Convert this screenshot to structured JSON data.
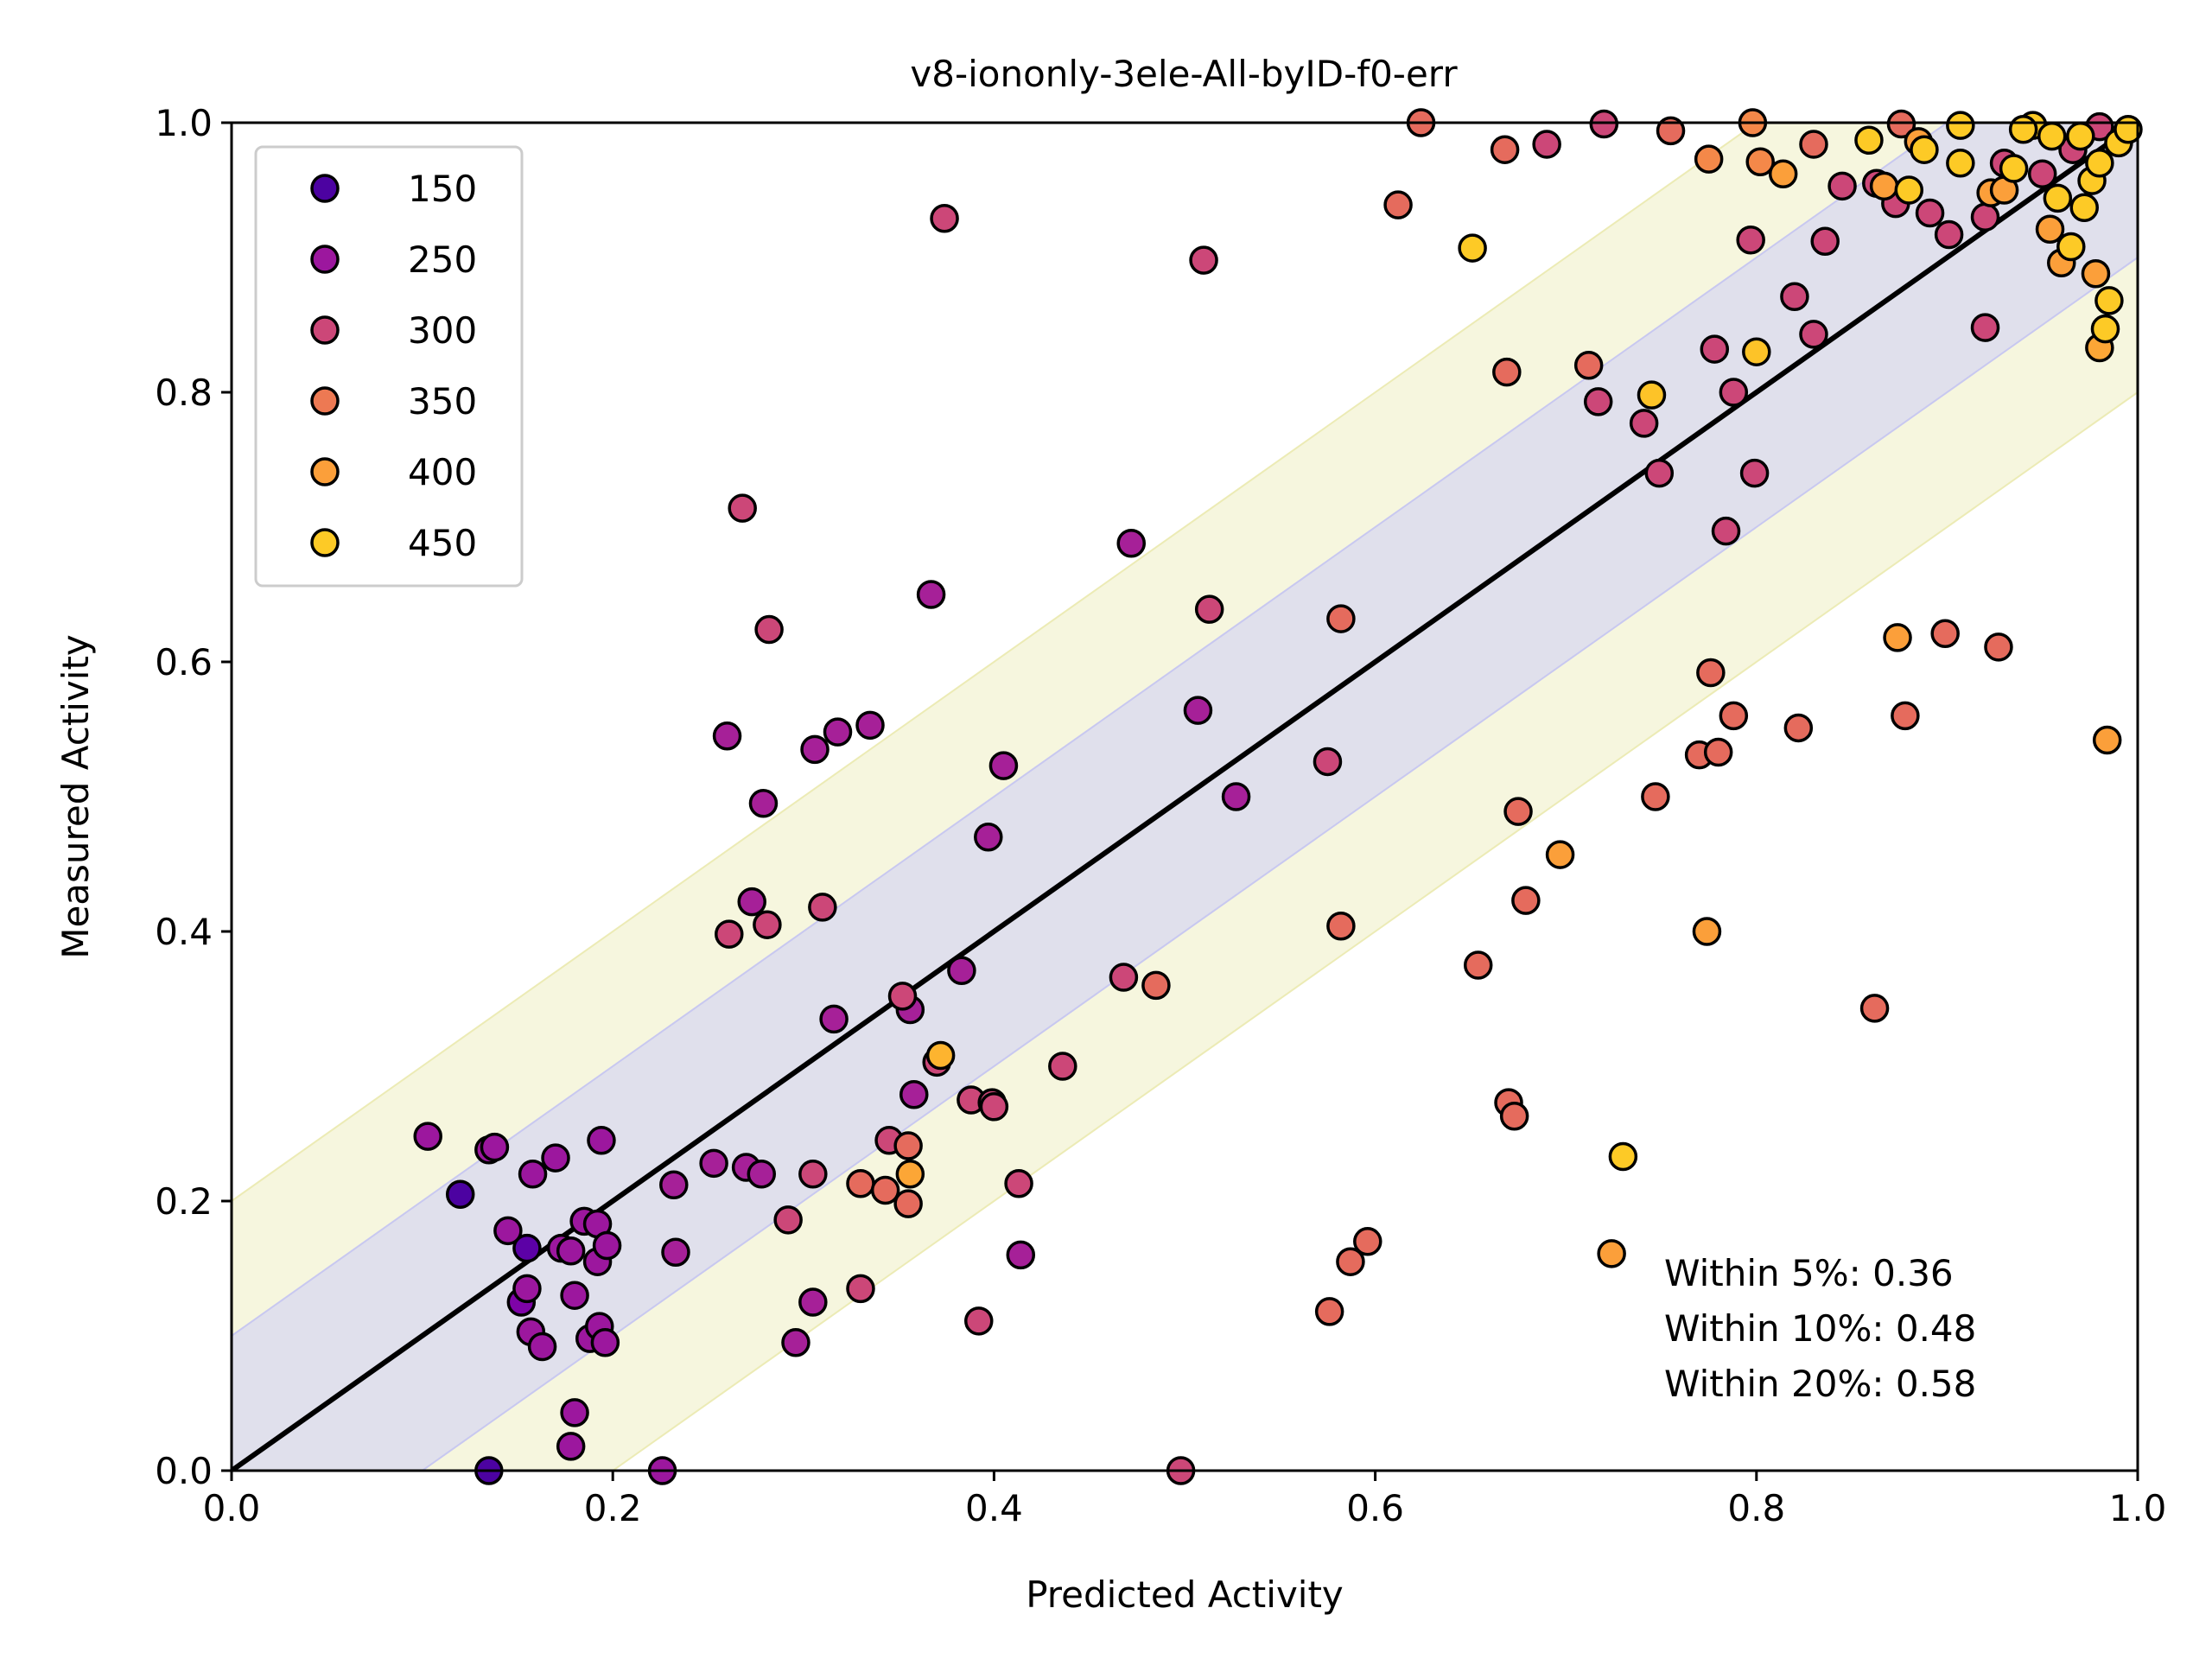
{
  "chart_data": {
    "type": "scatter",
    "title": "v8-iononly-3ele-All-byID-f0-err",
    "xlabel": "Predicted Activity",
    "ylabel": "Measured Activity",
    "xlim": [
      0.0,
      1.0
    ],
    "ylim": [
      0.0,
      1.0
    ],
    "xticks": [
      "0.0",
      "0.2",
      "0.4",
      "0.6",
      "0.8",
      "1.0"
    ],
    "yticks": [
      "0.0",
      "0.2",
      "0.4",
      "0.6",
      "0.8",
      "1.0"
    ],
    "grid": false,
    "legend_position": "upper-left",
    "legend": [
      {
        "label": "150",
        "color": "#4c02a1"
      },
      {
        "label": "250",
        "color": "#9c179e"
      },
      {
        "label": "300",
        "color": "#cc4778"
      },
      {
        "label": "350",
        "color": "#ed7953"
      },
      {
        "label": "400",
        "color": "#fb9f3a"
      },
      {
        "label": "450",
        "color": "#fdca26"
      }
    ],
    "reference_line": {
      "label": "y = x",
      "color": "#000000"
    },
    "bands": [
      {
        "half_width": 0.2,
        "color": "#f0f0c8"
      },
      {
        "half_width": 0.1,
        "color": "#dcdcee"
      }
    ],
    "annotations": [
      "Within 5%: 0.36",
      "Within 10%: 0.48",
      "Within 20%: 0.58"
    ],
    "points": [
      {
        "x": 0.12,
        "y": 0.205,
        "c": "#4c02a1"
      },
      {
        "x": 0.135,
        "y": 0.0,
        "c": "#4c02a1"
      },
      {
        "x": 0.155,
        "y": 0.165,
        "c": "#5c01a6"
      },
      {
        "x": 0.152,
        "y": 0.125,
        "c": "#7e03a8"
      },
      {
        "x": 0.103,
        "y": 0.248,
        "c": "#9c179e"
      },
      {
        "x": 0.135,
        "y": 0.238,
        "c": "#9c179e"
      },
      {
        "x": 0.138,
        "y": 0.24,
        "c": "#9c179e"
      },
      {
        "x": 0.145,
        "y": 0.178,
        "c": "#9c179e"
      },
      {
        "x": 0.155,
        "y": 0.135,
        "c": "#9c179e"
      },
      {
        "x": 0.157,
        "y": 0.103,
        "c": "#9c179e"
      },
      {
        "x": 0.158,
        "y": 0.22,
        "c": "#9c179e"
      },
      {
        "x": 0.163,
        "y": 0.092,
        "c": "#9c179e"
      },
      {
        "x": 0.17,
        "y": 0.232,
        "c": "#9c179e"
      },
      {
        "x": 0.173,
        "y": 0.165,
        "c": "#9c179e"
      },
      {
        "x": 0.178,
        "y": 0.163,
        "c": "#9c179e"
      },
      {
        "x": 0.18,
        "y": 0.13,
        "c": "#9c179e"
      },
      {
        "x": 0.185,
        "y": 0.185,
        "c": "#9c179e"
      },
      {
        "x": 0.188,
        "y": 0.098,
        "c": "#9c179e"
      },
      {
        "x": 0.192,
        "y": 0.183,
        "c": "#9c179e"
      },
      {
        "x": 0.192,
        "y": 0.155,
        "c": "#9c179e"
      },
      {
        "x": 0.193,
        "y": 0.107,
        "c": "#9c179e"
      },
      {
        "x": 0.194,
        "y": 0.245,
        "c": "#9c179e"
      },
      {
        "x": 0.196,
        "y": 0.095,
        "c": "#9c179e"
      },
      {
        "x": 0.197,
        "y": 0.167,
        "c": "#9c179e"
      },
      {
        "x": 0.178,
        "y": 0.018,
        "c": "#9c179e"
      },
      {
        "x": 0.18,
        "y": 0.043,
        "c": "#9c179e"
      },
      {
        "x": 0.226,
        "y": 0.0,
        "c": "#9c179e"
      },
      {
        "x": 0.232,
        "y": 0.212,
        "c": "#a62098"
      },
      {
        "x": 0.233,
        "y": 0.162,
        "c": "#a62098"
      },
      {
        "x": 0.253,
        "y": 0.228,
        "c": "#a62098"
      },
      {
        "x": 0.26,
        "y": 0.545,
        "c": "#a62098"
      },
      {
        "x": 0.27,
        "y": 0.225,
        "c": "#a62098"
      },
      {
        "x": 0.273,
        "y": 0.422,
        "c": "#a62098"
      },
      {
        "x": 0.278,
        "y": 0.22,
        "c": "#a62098"
      },
      {
        "x": 0.279,
        "y": 0.495,
        "c": "#a62098"
      },
      {
        "x": 0.296,
        "y": 0.095,
        "c": "#a62098"
      },
      {
        "x": 0.305,
        "y": 0.125,
        "c": "#a62098"
      },
      {
        "x": 0.306,
        "y": 0.535,
        "c": "#a62098"
      },
      {
        "x": 0.316,
        "y": 0.335,
        "c": "#a62098"
      },
      {
        "x": 0.318,
        "y": 0.548,
        "c": "#a62098"
      },
      {
        "x": 0.335,
        "y": 0.553,
        "c": "#a62098"
      },
      {
        "x": 0.356,
        "y": 0.342,
        "c": "#a62098"
      },
      {
        "x": 0.358,
        "y": 0.279,
        "c": "#a62098"
      },
      {
        "x": 0.367,
        "y": 0.65,
        "c": "#a62098"
      },
      {
        "x": 0.383,
        "y": 0.371,
        "c": "#a62098"
      },
      {
        "x": 0.397,
        "y": 0.47,
        "c": "#a62098"
      },
      {
        "x": 0.405,
        "y": 0.523,
        "c": "#a62098"
      },
      {
        "x": 0.414,
        "y": 0.16,
        "c": "#a62098"
      },
      {
        "x": 0.472,
        "y": 0.688,
        "c": "#a62098"
      },
      {
        "x": 0.507,
        "y": 0.564,
        "c": "#a62098"
      },
      {
        "x": 0.527,
        "y": 0.5,
        "c": "#a62098"
      },
      {
        "x": 0.268,
        "y": 0.714,
        "c": "#cc4778"
      },
      {
        "x": 0.282,
        "y": 0.624,
        "c": "#cc4778"
      },
      {
        "x": 0.281,
        "y": 0.405,
        "c": "#cc4778"
      },
      {
        "x": 0.261,
        "y": 0.398,
        "c": "#cc4778"
      },
      {
        "x": 0.292,
        "y": 0.186,
        "c": "#cc4778"
      },
      {
        "x": 0.305,
        "y": 0.22,
        "c": "#cc4778"
      },
      {
        "x": 0.31,
        "y": 0.418,
        "c": "#cc4778"
      },
      {
        "x": 0.33,
        "y": 0.135,
        "c": "#cc4778"
      },
      {
        "x": 0.345,
        "y": 0.245,
        "c": "#cc4778"
      },
      {
        "x": 0.352,
        "y": 0.352,
        "c": "#cc4778"
      },
      {
        "x": 0.374,
        "y": 0.929,
        "c": "#cc4778"
      },
      {
        "x": 0.37,
        "y": 0.303,
        "c": "#cc4778"
      },
      {
        "x": 0.388,
        "y": 0.275,
        "c": "#cc4778"
      },
      {
        "x": 0.392,
        "y": 0.111,
        "c": "#cc4778"
      },
      {
        "x": 0.399,
        "y": 0.273,
        "c": "#cc4778"
      },
      {
        "x": 0.4,
        "y": 0.27,
        "c": "#cc4778"
      },
      {
        "x": 0.413,
        "y": 0.213,
        "c": "#cc4778"
      },
      {
        "x": 0.436,
        "y": 0.3,
        "c": "#cc4778"
      },
      {
        "x": 0.468,
        "y": 0.366,
        "c": "#cc4778"
      },
      {
        "x": 0.498,
        "y": 0.0,
        "c": "#cc4778"
      },
      {
        "x": 0.51,
        "y": 0.898,
        "c": "#cc4778"
      },
      {
        "x": 0.513,
        "y": 0.639,
        "c": "#cc4778"
      },
      {
        "x": 0.575,
        "y": 0.526,
        "c": "#cc4778"
      },
      {
        "x": 0.69,
        "y": 0.984,
        "c": "#cc4778"
      },
      {
        "x": 0.72,
        "y": 0.999,
        "c": "#cc4778"
      },
      {
        "x": 0.717,
        "y": 0.793,
        "c": "#cc4778"
      },
      {
        "x": 0.741,
        "y": 0.777,
        "c": "#cc4778"
      },
      {
        "x": 0.749,
        "y": 0.74,
        "c": "#cc4778"
      },
      {
        "x": 0.778,
        "y": 0.832,
        "c": "#cc4778"
      },
      {
        "x": 0.784,
        "y": 0.697,
        "c": "#cc4778"
      },
      {
        "x": 0.788,
        "y": 0.8,
        "c": "#cc4778"
      },
      {
        "x": 0.799,
        "y": 0.74,
        "c": "#cc4778"
      },
      {
        "x": 0.797,
        "y": 0.913,
        "c": "#cc4778"
      },
      {
        "x": 0.82,
        "y": 0.871,
        "c": "#cc4778"
      },
      {
        "x": 0.83,
        "y": 0.843,
        "c": "#cc4778"
      },
      {
        "x": 0.836,
        "y": 0.912,
        "c": "#cc4778"
      },
      {
        "x": 0.845,
        "y": 0.953,
        "c": "#cc4778"
      },
      {
        "x": 0.863,
        "y": 0.955,
        "c": "#cc4778"
      },
      {
        "x": 0.873,
        "y": 0.94,
        "c": "#cc4778"
      },
      {
        "x": 0.891,
        "y": 0.933,
        "c": "#cc4778"
      },
      {
        "x": 0.901,
        "y": 0.917,
        "c": "#cc4778"
      },
      {
        "x": 0.92,
        "y": 0.848,
        "c": "#cc4778"
      },
      {
        "x": 0.92,
        "y": 0.93,
        "c": "#cc4778"
      },
      {
        "x": 0.93,
        "y": 0.97,
        "c": "#cc4778"
      },
      {
        "x": 0.95,
        "y": 0.962,
        "c": "#cc4778"
      },
      {
        "x": 0.966,
        "y": 0.98,
        "c": "#cc4778"
      },
      {
        "x": 0.98,
        "y": 0.997,
        "c": "#cc4778"
      },
      {
        "x": 0.33,
        "y": 0.213,
        "c": "#e56b5d"
      },
      {
        "x": 0.343,
        "y": 0.208,
        "c": "#e56b5d"
      },
      {
        "x": 0.355,
        "y": 0.241,
        "c": "#e56b5d"
      },
      {
        "x": 0.355,
        "y": 0.198,
        "c": "#e56b5d"
      },
      {
        "x": 0.485,
        "y": 0.36,
        "c": "#e56b5d"
      },
      {
        "x": 0.576,
        "y": 0.118,
        "c": "#e56b5d"
      },
      {
        "x": 0.582,
        "y": 0.404,
        "c": "#e56b5d"
      },
      {
        "x": 0.582,
        "y": 0.632,
        "c": "#e56b5d"
      },
      {
        "x": 0.587,
        "y": 0.155,
        "c": "#e56b5d"
      },
      {
        "x": 0.596,
        "y": 0.17,
        "c": "#e56b5d"
      },
      {
        "x": 0.612,
        "y": 0.939,
        "c": "#e56b5d"
      },
      {
        "x": 0.624,
        "y": 1.0,
        "c": "#e56b5d"
      },
      {
        "x": 0.654,
        "y": 0.375,
        "c": "#e56b5d"
      },
      {
        "x": 0.668,
        "y": 0.98,
        "c": "#e56b5d"
      },
      {
        "x": 0.669,
        "y": 0.815,
        "c": "#e56b5d"
      },
      {
        "x": 0.67,
        "y": 0.273,
        "c": "#e56b5d"
      },
      {
        "x": 0.673,
        "y": 0.263,
        "c": "#e56b5d"
      },
      {
        "x": 0.675,
        "y": 0.489,
        "c": "#e56b5d"
      },
      {
        "x": 0.679,
        "y": 0.423,
        "c": "#e56b5d"
      },
      {
        "x": 0.712,
        "y": 0.82,
        "c": "#e56b5d"
      },
      {
        "x": 0.747,
        "y": 0.5,
        "c": "#e56b5d"
      },
      {
        "x": 0.755,
        "y": 0.994,
        "c": "#e56b5d"
      },
      {
        "x": 0.77,
        "y": 0.531,
        "c": "#e56b5d"
      },
      {
        "x": 0.776,
        "y": 0.592,
        "c": "#e56b5d"
      },
      {
        "x": 0.78,
        "y": 0.533,
        "c": "#e56b5d"
      },
      {
        "x": 0.788,
        "y": 0.56,
        "c": "#e56b5d"
      },
      {
        "x": 0.822,
        "y": 0.551,
        "c": "#e56b5d"
      },
      {
        "x": 0.862,
        "y": 0.343,
        "c": "#e56b5d"
      },
      {
        "x": 0.876,
        "y": 0.999,
        "c": "#e56b5d"
      },
      {
        "x": 0.878,
        "y": 0.56,
        "c": "#e56b5d"
      },
      {
        "x": 0.899,
        "y": 0.621,
        "c": "#e56b5d"
      },
      {
        "x": 0.927,
        "y": 0.611,
        "c": "#e56b5d"
      },
      {
        "x": 0.775,
        "y": 0.973,
        "c": "#f48849"
      },
      {
        "x": 0.798,
        "y": 1.0,
        "c": "#f48849"
      },
      {
        "x": 0.802,
        "y": 0.971,
        "c": "#f48849"
      },
      {
        "x": 0.83,
        "y": 0.984,
        "c": "#e56b5d"
      },
      {
        "x": 0.697,
        "y": 0.457,
        "c": "#fb9f3a"
      },
      {
        "x": 0.724,
        "y": 0.161,
        "c": "#fb9f3a"
      },
      {
        "x": 0.774,
        "y": 0.4,
        "c": "#fb9f3a"
      },
      {
        "x": 0.814,
        "y": 0.962,
        "c": "#fb9f3a"
      },
      {
        "x": 0.867,
        "y": 0.953,
        "c": "#fb9f3a"
      },
      {
        "x": 0.874,
        "y": 0.618,
        "c": "#fb9f3a"
      },
      {
        "x": 0.885,
        "y": 0.986,
        "c": "#fb9f3a"
      },
      {
        "x": 0.923,
        "y": 0.948,
        "c": "#fb9f3a"
      },
      {
        "x": 0.93,
        "y": 0.95,
        "c": "#fb9f3a"
      },
      {
        "x": 0.954,
        "y": 0.921,
        "c": "#fb9f3a"
      },
      {
        "x": 0.96,
        "y": 0.896,
        "c": "#fb9f3a"
      },
      {
        "x": 0.978,
        "y": 0.888,
        "c": "#fb9f3a"
      },
      {
        "x": 0.984,
        "y": 0.542,
        "c": "#fb9f3a"
      },
      {
        "x": 0.98,
        "y": 0.833,
        "c": "#fca636"
      },
      {
        "x": 0.356,
        "y": 0.22,
        "c": "#fca636"
      },
      {
        "x": 0.372,
        "y": 0.308,
        "c": "#fdb42f"
      },
      {
        "x": 0.651,
        "y": 0.907,
        "c": "#fdca26"
      },
      {
        "x": 0.73,
        "y": 0.233,
        "c": "#fdca26"
      },
      {
        "x": 0.745,
        "y": 0.798,
        "c": "#fdc328"
      },
      {
        "x": 0.8,
        "y": 0.83,
        "c": "#fdc328"
      },
      {
        "x": 0.859,
        "y": 0.987,
        "c": "#fdca26"
      },
      {
        "x": 0.88,
        "y": 0.95,
        "c": "#fdca26"
      },
      {
        "x": 0.888,
        "y": 0.98,
        "c": "#fdca26"
      },
      {
        "x": 0.907,
        "y": 0.998,
        "c": "#fdca26"
      },
      {
        "x": 0.907,
        "y": 0.97,
        "c": "#fdca26"
      },
      {
        "x": 0.935,
        "y": 0.966,
        "c": "#fdca26"
      },
      {
        "x": 0.945,
        "y": 0.998,
        "c": "#fdca26"
      },
      {
        "x": 0.955,
        "y": 0.99,
        "c": "#fdca26"
      },
      {
        "x": 0.958,
        "y": 0.944,
        "c": "#fdca26"
      },
      {
        "x": 0.965,
        "y": 0.908,
        "c": "#fdca26"
      },
      {
        "x": 0.97,
        "y": 0.99,
        "c": "#fdca26"
      },
      {
        "x": 0.972,
        "y": 0.937,
        "c": "#fdca26"
      },
      {
        "x": 0.976,
        "y": 0.957,
        "c": "#fdca26"
      },
      {
        "x": 0.98,
        "y": 0.97,
        "c": "#fdca26"
      },
      {
        "x": 0.983,
        "y": 0.847,
        "c": "#fdca26"
      },
      {
        "x": 0.985,
        "y": 0.868,
        "c": "#fdca26"
      },
      {
        "x": 0.99,
        "y": 0.985,
        "c": "#fdca26"
      },
      {
        "x": 0.995,
        "y": 0.995,
        "c": "#fdca26"
      },
      {
        "x": 0.94,
        "y": 0.995,
        "c": "#fdca26"
      }
    ]
  }
}
